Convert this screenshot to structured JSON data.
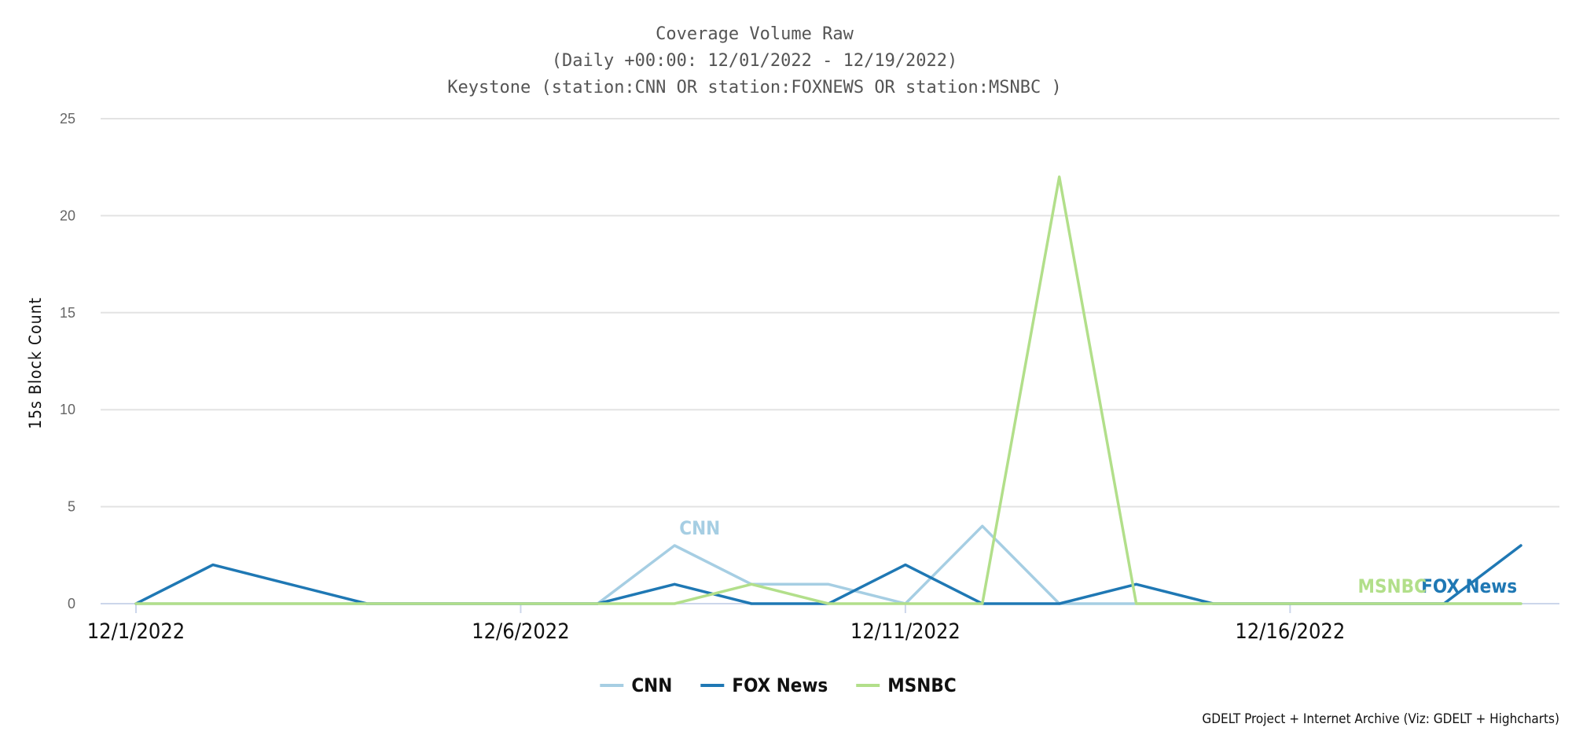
{
  "chart_data": {
    "type": "line",
    "title": "Coverage Volume Raw",
    "subtitle_lines": [
      "(Daily +00:00: 12/01/2022 - 12/19/2022)",
      "Keystone (station:CNN OR station:FOXNEWS OR station:MSNBC )"
    ],
    "xlabel": "",
    "ylabel": "15s Block Count",
    "ylim": [
      0,
      25
    ],
    "yticks": [
      0,
      5,
      10,
      15,
      20,
      25
    ],
    "x": [
      "2022-12-01",
      "2022-12-02",
      "2022-12-03",
      "2022-12-04",
      "2022-12-05",
      "2022-12-06",
      "2022-12-07",
      "2022-12-08",
      "2022-12-09",
      "2022-12-10",
      "2022-12-11",
      "2022-12-12",
      "2022-12-13",
      "2022-12-14",
      "2022-12-15",
      "2022-12-16",
      "2022-12-17",
      "2022-12-18",
      "2022-12-19"
    ],
    "xtick_labels": [
      "12/1/2022",
      "12/6/2022",
      "12/11/2022",
      "12/16/2022"
    ],
    "xtick_dates": [
      "2022-12-01",
      "2022-12-06",
      "2022-12-11",
      "2022-12-16"
    ],
    "grid": true,
    "legend_placement": "bottom-center",
    "series": [
      {
        "name": "CNN",
        "color": "#a6cee3",
        "values": [
          0,
          0,
          0,
          0,
          0,
          0,
          0,
          3,
          1,
          1,
          0,
          4,
          0,
          0,
          0,
          0,
          0,
          0,
          0
        ]
      },
      {
        "name": "FOX News",
        "color": "#1f78b4",
        "values": [
          0,
          2,
          1,
          0,
          0,
          0,
          0,
          1,
          0,
          0,
          2,
          0,
          0,
          1,
          0,
          0,
          0,
          0,
          3
        ]
      },
      {
        "name": "MSNBC",
        "color": "#b2df8a",
        "values": [
          0,
          0,
          0,
          0,
          0,
          0,
          0,
          0,
          1,
          0,
          0,
          0,
          22,
          0,
          0,
          0,
          0,
          0,
          0
        ]
      }
    ],
    "series_labels": [
      {
        "series": "CNN",
        "text": "CNN",
        "date": "2022-12-08"
      },
      {
        "series": "FOX News",
        "text": "FOX News",
        "date": "2022-12-18"
      },
      {
        "series": "MSNBC",
        "text": "MSNBC",
        "date": "2022-12-17"
      }
    ],
    "credits": "GDELT Project + Internet Archive (Viz: GDELT + Highcharts)"
  }
}
